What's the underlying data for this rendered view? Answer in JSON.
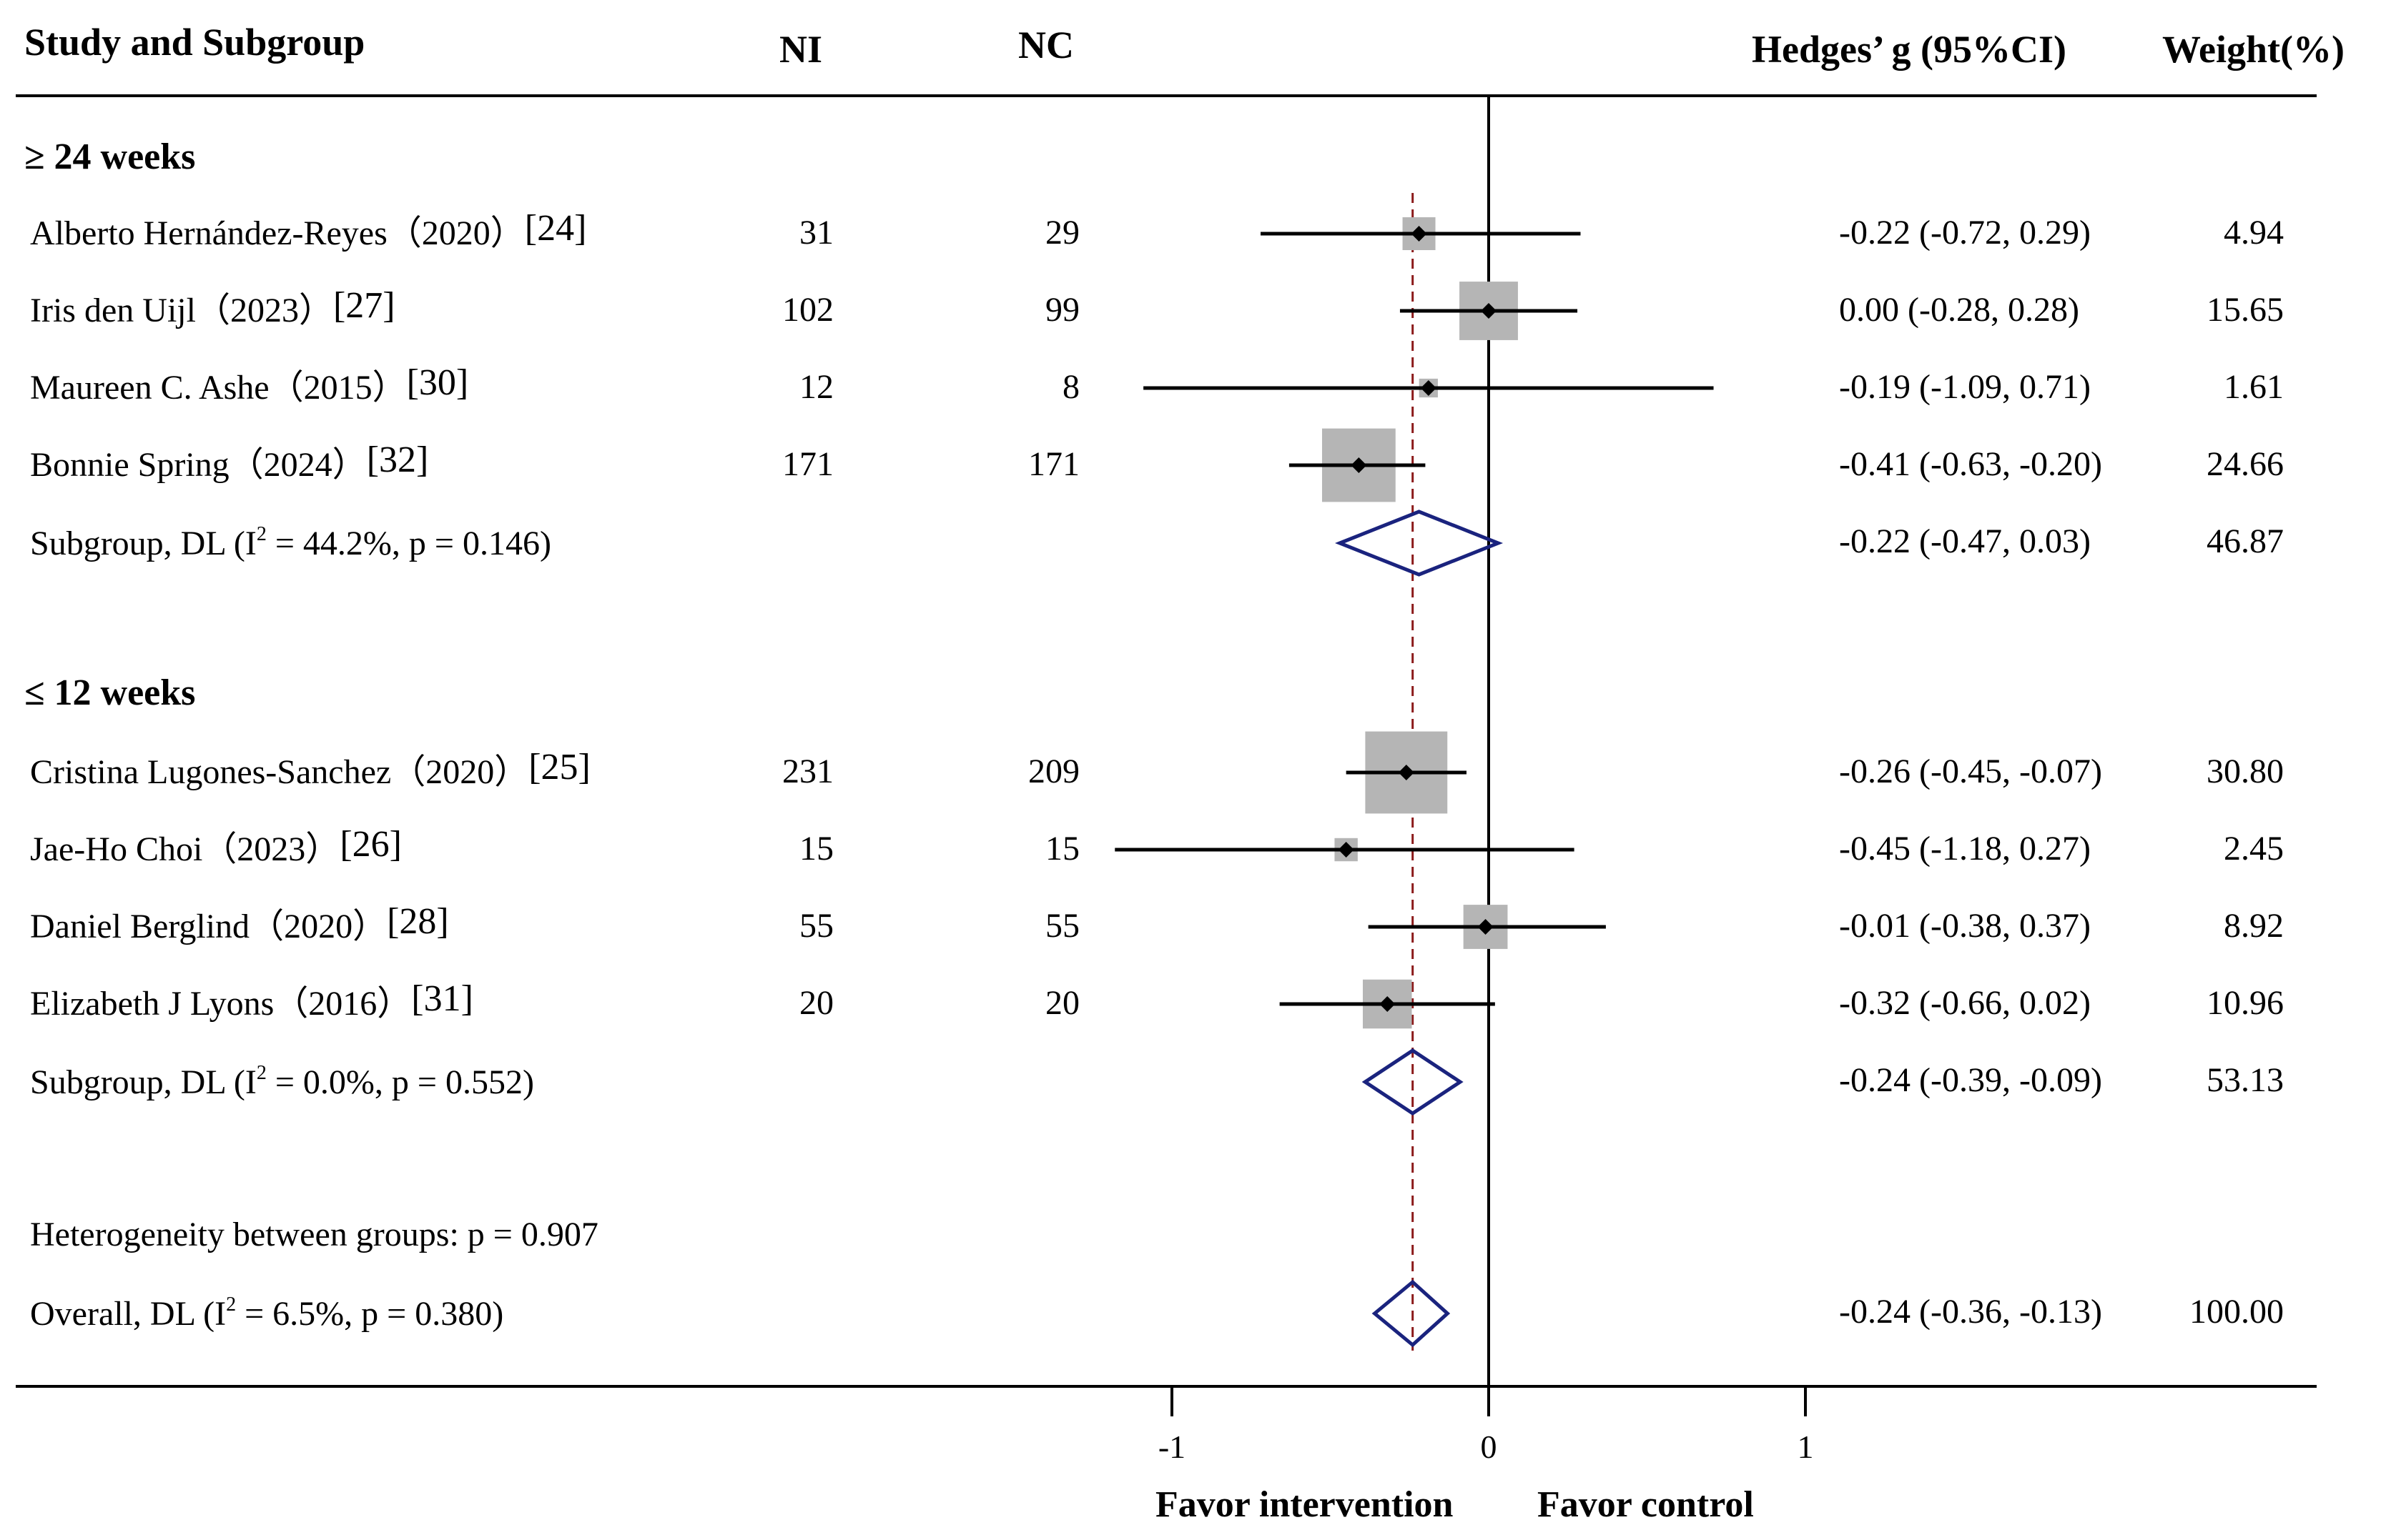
{
  "headers": {
    "study": "Study and Subgroup",
    "ni": "NI",
    "nc": "NC",
    "effect": "Hedges’ g (95%CI)",
    "weight": "Weight(%)"
  },
  "groups": [
    {
      "title": "≥ 24 weeks",
      "studies": [
        {
          "author": "Alberto Hernández-Reyes",
          "year": "（2020）",
          "ref": "[24]",
          "ni": "31",
          "nc": "29",
          "ci_text": "-0.22 (-0.72, 0.29)",
          "weight": "4.94"
        },
        {
          "author": "Iris den Uijl",
          "year": "（2023）",
          "ref": "[27]",
          "ni": "102",
          "nc": "99",
          "ci_text": "0.00 (-0.28, 0.28)",
          "weight": "15.65"
        },
        {
          "author": "Maureen C. Ashe",
          "year": "（2015）",
          "ref": "[30]",
          "ni": "12",
          "nc": "8",
          "ci_text": "-0.19 (-1.09, 0.71)",
          "weight": "1.61"
        },
        {
          "author": "Bonnie Spring",
          "year": "（2024）",
          "ref": "[32]",
          "ni": "171",
          "nc": "171",
          "ci_text": "-0.41 (-0.63, -0.20)",
          "weight": "24.66"
        }
      ],
      "subgroup": {
        "prefix": "Subgroup, DL (I",
        "sup": "2",
        "suffix": " = 44.2%, p = 0.146)",
        "ci_text": "-0.22 (-0.47, 0.03)",
        "weight": "46.87"
      }
    },
    {
      "title": "≤ 12 weeks",
      "studies": [
        {
          "author": "Cristina Lugones-Sanchez",
          "year": "（2020）",
          "ref": "[25]",
          "ni": "231",
          "nc": "209",
          "ci_text": "-0.26 (-0.45, -0.07)",
          "weight": "30.80"
        },
        {
          "author": "Jae-Ho Choi",
          "year": "（2023）",
          "ref": "[26]",
          "ni": "15",
          "nc": "15",
          "ci_text": "-0.45 (-1.18, 0.27)",
          "weight": "2.45"
        },
        {
          "author": "Daniel Berglind",
          "year": "（2020）",
          "ref": "[28]",
          "ni": "55",
          "nc": "55",
          "ci_text": "-0.01 (-0.38, 0.37)",
          "weight": "8.92"
        },
        {
          "author": "Elizabeth J Lyons",
          "year": "（2016）",
          "ref": "[31]",
          "ni": "20",
          "nc": "20",
          "ci_text": "-0.32 (-0.66, 0.02)",
          "weight": "10.96"
        }
      ],
      "subgroup": {
        "prefix": "Subgroup, DL (I",
        "sup": "2",
        "suffix": " = 0.0%, p = 0.552)",
        "ci_text": "-0.24 (-0.39, -0.09)",
        "weight": "53.13"
      }
    }
  ],
  "heterogeneity": "Heterogeneity between groups: p = 0.907",
  "overall": {
    "prefix": "Overall, DL (I",
    "sup": "2",
    "suffix": " = 6.5%, p = 0.380)",
    "ci_text": "-0.24 (-0.36, -0.13)",
    "weight": "100.00"
  },
  "footer": {
    "favor_left": "Favor intervention",
    "favor_right": "Favor control"
  },
  "colors": {
    "diamond": "#1a237e",
    "box": "#b5b5b5",
    "ref_line": "#8b1a1a",
    "line": "#000000"
  },
  "chart_data": {
    "type": "forest",
    "xlabel_left": "Favor intervention",
    "xlabel_right": "Favor control",
    "xticks": [
      -1,
      0,
      1
    ],
    "xtick_labels": [
      "-1",
      "0",
      "1"
    ],
    "null_line": 0,
    "pooled_line": -0.24,
    "studies": [
      {
        "name": "Alberto Hernández-Reyes (2020) [24]",
        "group": "≥ 24 weeks",
        "g": -0.22,
        "lo": -0.72,
        "hi": 0.29,
        "weight": 4.94
      },
      {
        "name": "Iris den Uijl (2023) [27]",
        "group": "≥ 24 weeks",
        "g": 0.0,
        "lo": -0.28,
        "hi": 0.28,
        "weight": 15.65
      },
      {
        "name": "Maureen C. Ashe (2015) [30]",
        "group": "≥ 24 weeks",
        "g": -0.19,
        "lo": -1.09,
        "hi": 0.71,
        "weight": 1.61
      },
      {
        "name": "Bonnie Spring (2024) [32]",
        "group": "≥ 24 weeks",
        "g": -0.41,
        "lo": -0.63,
        "hi": -0.2,
        "weight": 24.66
      },
      {
        "name": "Cristina Lugones-Sanchez (2020) [25]",
        "group": "≤ 12 weeks",
        "g": -0.26,
        "lo": -0.45,
        "hi": -0.07,
        "weight": 30.8
      },
      {
        "name": "Jae-Ho Choi (2023) [26]",
        "group": "≤ 12 weeks",
        "g": -0.45,
        "lo": -1.18,
        "hi": 0.27,
        "weight": 2.45
      },
      {
        "name": "Daniel Berglind (2020) [28]",
        "group": "≤ 12 weeks",
        "g": -0.01,
        "lo": -0.38,
        "hi": 0.37,
        "weight": 8.92
      },
      {
        "name": "Elizabeth J Lyons (2016) [31]",
        "group": "≤ 12 weeks",
        "g": -0.32,
        "lo": -0.66,
        "hi": 0.02,
        "weight": 10.96
      }
    ],
    "pooled": [
      {
        "name": "Subgroup ≥ 24 weeks",
        "g": -0.22,
        "lo": -0.47,
        "hi": 0.03,
        "weight": 46.87,
        "i2": 44.2,
        "p": 0.146
      },
      {
        "name": "Subgroup ≤ 12 weeks",
        "g": -0.24,
        "lo": -0.39,
        "hi": -0.09,
        "weight": 53.13,
        "i2": 0.0,
        "p": 0.552
      },
      {
        "name": "Overall",
        "g": -0.24,
        "lo": -0.36,
        "hi": -0.13,
        "weight": 100.0,
        "i2": 6.5,
        "p": 0.38
      }
    ]
  }
}
